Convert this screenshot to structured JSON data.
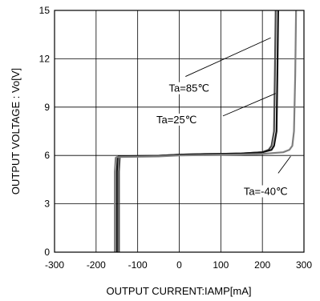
{
  "chart_data": {
    "type": "line",
    "title": "",
    "xlabel": "OUTPUT CURRENT:IAMP[mA]",
    "ylabel": "OUTPUT VOLTAGE : Vo[V]",
    "xlim": [
      -300,
      300
    ],
    "ylim": [
      0,
      15
    ],
    "x_ticks": [
      -300,
      -200,
      -100,
      0,
      100,
      200,
      300
    ],
    "y_ticks": [
      0,
      3,
      6,
      9,
      12,
      15
    ],
    "x_tick_labels": [
      "-300",
      "-200",
      "-100",
      "0",
      "100",
      "200",
      "300"
    ],
    "y_tick_labels": [
      "0",
      "3",
      "6",
      "9",
      "12",
      "15"
    ],
    "grid": true,
    "legend": "none",
    "series": [
      {
        "name": "Ta=85℃",
        "color": "#4a4a4a",
        "x": [
          -145,
          -145,
          -143,
          -140,
          -100,
          -50,
          0,
          50,
          100,
          150,
          200,
          215,
          222,
          228,
          230,
          232
        ],
        "y": [
          0,
          5.0,
          5.9,
          5.95,
          5.96,
          5.98,
          6.05,
          6.08,
          6.1,
          6.12,
          6.2,
          6.35,
          6.6,
          7.5,
          11.0,
          15.0
        ]
      },
      {
        "name": "Ta=25℃",
        "color": "#111111",
        "x": [
          -150,
          -150,
          -148,
          -145,
          -100,
          -50,
          0,
          50,
          100,
          150,
          200,
          222,
          228,
          234,
          236,
          238
        ],
        "y": [
          0,
          5.0,
          5.9,
          5.95,
          5.96,
          5.98,
          6.05,
          6.08,
          6.1,
          6.12,
          6.2,
          6.35,
          6.6,
          7.5,
          11.0,
          15.0
        ]
      },
      {
        "name": "Ta=-40℃",
        "color": "#7f7f7f",
        "x": [
          -155,
          -155,
          -153,
          -150,
          -100,
          -50,
          0,
          50,
          100,
          150,
          200,
          250,
          265,
          272,
          276,
          279,
          281
        ],
        "y": [
          0,
          5.0,
          5.85,
          5.9,
          5.92,
          5.94,
          6.0,
          6.02,
          6.04,
          6.06,
          6.1,
          6.2,
          6.35,
          6.6,
          7.5,
          11.0,
          15.0
        ]
      }
    ],
    "annotations": [
      {
        "label": "Ta=85℃",
        "text_x": -25,
        "text_y": 10.2,
        "leader": [
          [
            15,
            10.9
          ],
          [
            220,
            13.3
          ]
        ]
      },
      {
        "label": "Ta=25℃",
        "text_x": -55,
        "text_y": 8.25,
        "leader": [
          [
            105,
            8.45
          ],
          [
            232,
            9.85
          ]
        ]
      },
      {
        "label": "Ta=-40℃",
        "text_x": 155,
        "text_y": 3.8,
        "leader": [
          [
            238,
            4.9
          ],
          [
            268,
            5.95
          ]
        ]
      }
    ]
  },
  "colors": {
    "frame": "#000000",
    "grid": "#000000",
    "background": "#ffffff"
  }
}
